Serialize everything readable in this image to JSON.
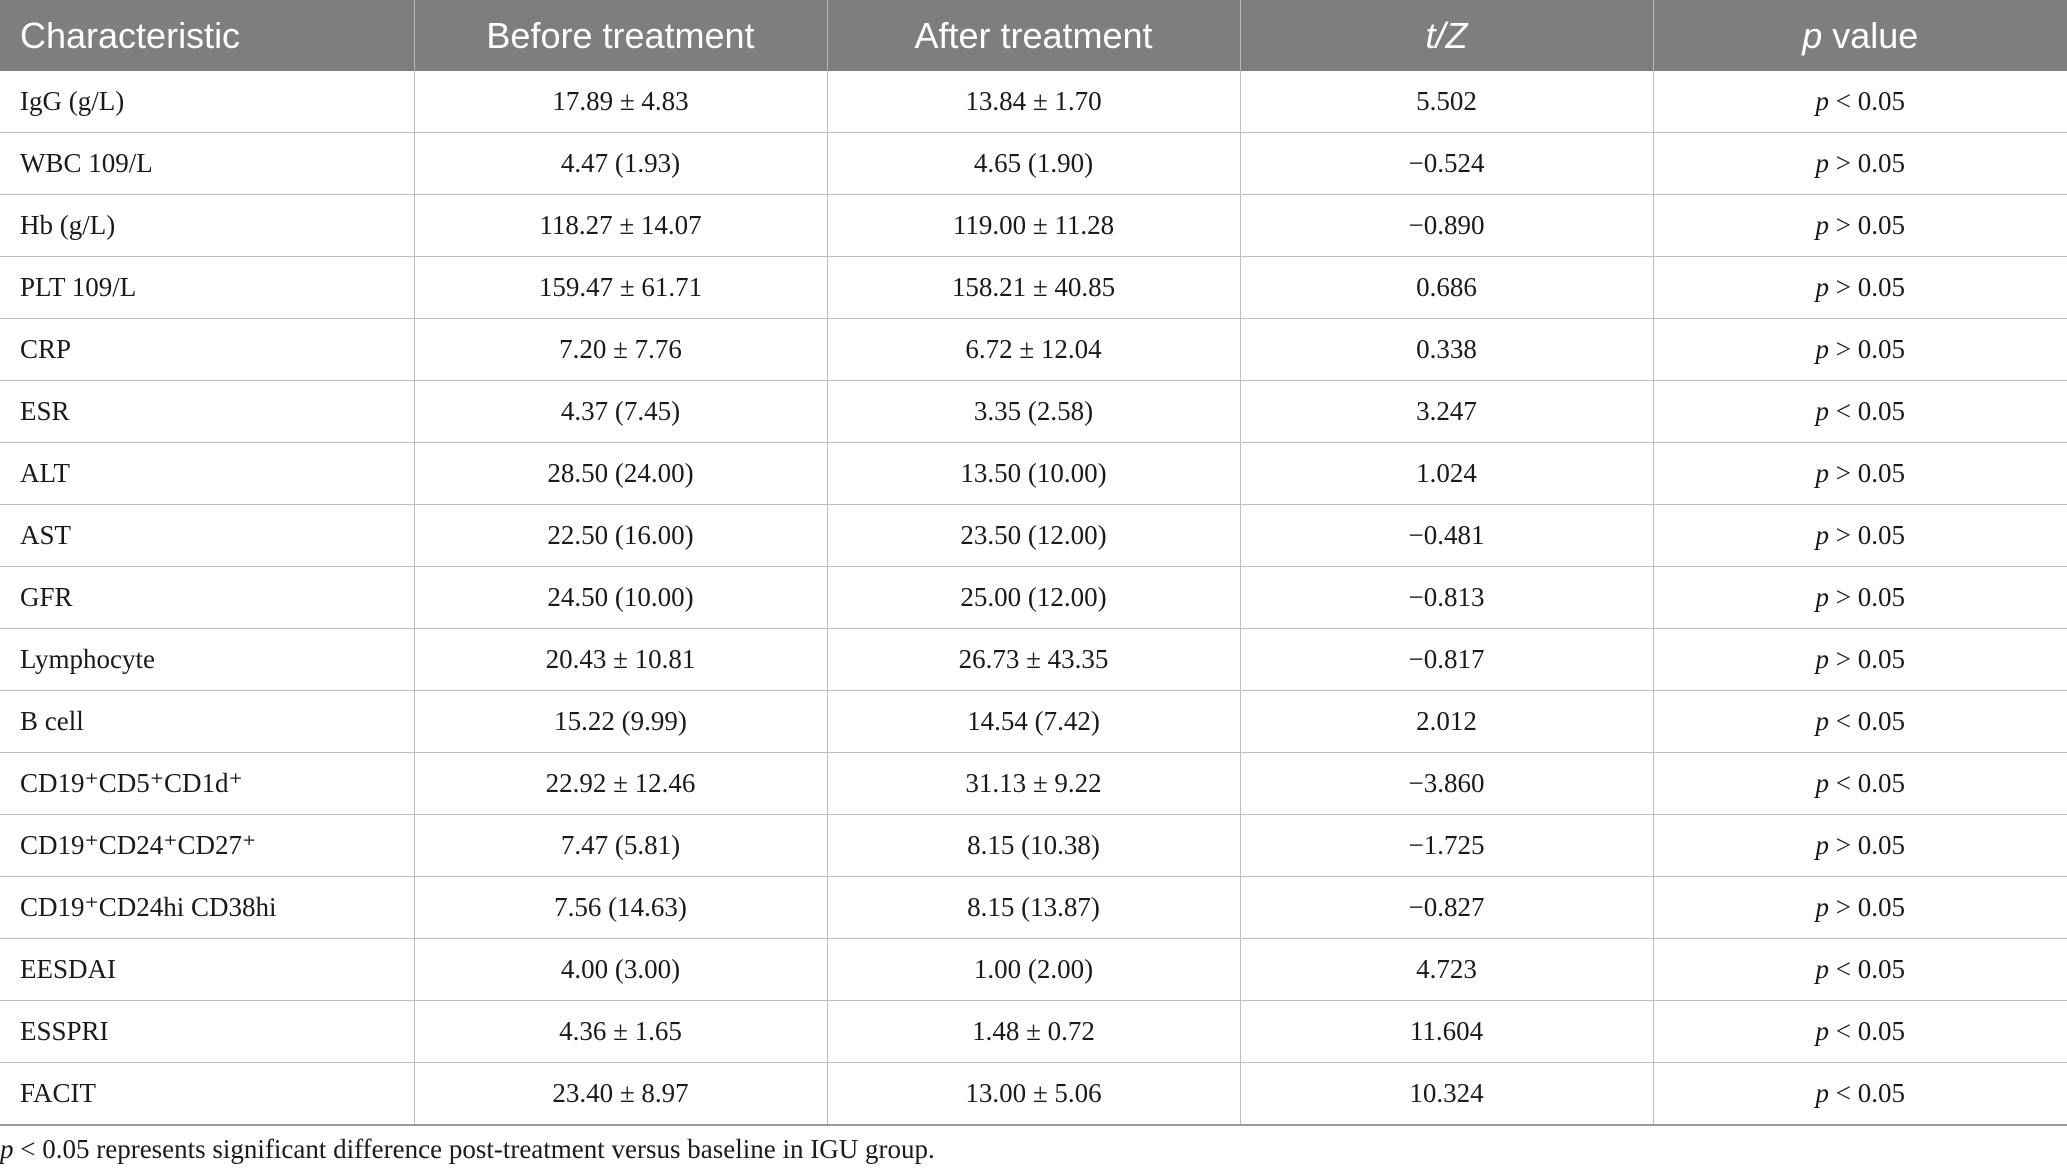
{
  "table": {
    "headers": {
      "characteristic": "Characteristic",
      "before": "Before treatment",
      "after": "After treatment",
      "tz": "t/Z",
      "p_italic": "p",
      "p_rest": " value"
    },
    "rows": [
      {
        "name": "IgG (g/L)",
        "before": "17.89 ± 4.83",
        "after": "13.84 ± 1.70",
        "tz": "5.502",
        "p_sym": "p",
        "p_rest": " < 0.05"
      },
      {
        "name": "WBC 109/L",
        "before": "4.47 (1.93)",
        "after": "4.65 (1.90)",
        "tz": "−0.524",
        "p_sym": "p",
        "p_rest": " > 0.05"
      },
      {
        "name": "Hb (g/L)",
        "before": "118.27 ± 14.07",
        "after": "119.00 ± 11.28",
        "tz": "−0.890",
        "p_sym": "p",
        "p_rest": " > 0.05"
      },
      {
        "name": "PLT 109/L",
        "before": "159.47 ± 61.71",
        "after": "158.21 ± 40.85",
        "tz": "0.686",
        "p_sym": "p",
        "p_rest": " > 0.05"
      },
      {
        "name": "CRP",
        "before": "7.20 ± 7.76",
        "after": "6.72 ± 12.04",
        "tz": "0.338",
        "p_sym": "p",
        "p_rest": " > 0.05"
      },
      {
        "name": "ESR",
        "before": "4.37 (7.45)",
        "after": "3.35 (2.58)",
        "tz": "3.247",
        "p_sym": "p",
        "p_rest": " < 0.05"
      },
      {
        "name": "ALT",
        "before": "28.50 (24.00)",
        "after": "13.50 (10.00)",
        "tz": "1.024",
        "p_sym": "p",
        "p_rest": " > 0.05"
      },
      {
        "name": "AST",
        "before": "22.50 (16.00)",
        "after": "23.50 (12.00)",
        "tz": "−0.481",
        "p_sym": "p",
        "p_rest": " > 0.05"
      },
      {
        "name": "GFR",
        "before": "24.50 (10.00)",
        "after": "25.00 (12.00)",
        "tz": "−0.813",
        "p_sym": "p",
        "p_rest": " > 0.05"
      },
      {
        "name": "Lymphocyte",
        "before": "20.43 ± 10.81",
        "after": "26.73 ± 43.35",
        "tz": "−0.817",
        "p_sym": "p",
        "p_rest": " > 0.05"
      },
      {
        "name": "B cell",
        "before": "15.22 (9.99)",
        "after": "14.54 (7.42)",
        "tz": "2.012",
        "p_sym": "p",
        "p_rest": " < 0.05"
      },
      {
        "name": "CD19⁺CD5⁺CD1d⁺",
        "before": "22.92 ± 12.46",
        "after": "31.13 ± 9.22",
        "tz": "−3.860",
        "p_sym": "p",
        "p_rest": " < 0.05"
      },
      {
        "name": "CD19⁺CD24⁺CD27⁺",
        "before": "7.47 (5.81)",
        "after": "8.15 (10.38)",
        "tz": "−1.725",
        "p_sym": "p",
        "p_rest": " > 0.05"
      },
      {
        "name": "CD19⁺CD24hi CD38hi",
        "before": "7.56 (14.63)",
        "after": "8.15 (13.87)",
        "tz": "−0.827",
        "p_sym": "p",
        "p_rest": " > 0.05"
      },
      {
        "name": "EESDAI",
        "before": "4.00 (3.00)",
        "after": "1.00 (2.00)",
        "tz": "4.723",
        "p_sym": "p",
        "p_rest": " < 0.05"
      },
      {
        "name": "ESSPRI",
        "before": "4.36 ± 1.65",
        "after": "1.48 ± 0.72",
        "tz": "11.604",
        "p_sym": "p",
        "p_rest": " < 0.05"
      },
      {
        "name": "FACIT",
        "before": "23.40 ± 8.97",
        "after": "13.00 ± 5.06",
        "tz": "10.324",
        "p_sym": "p",
        "p_rest": " < 0.05"
      }
    ]
  },
  "footnote": {
    "p_italic": "p",
    "text": " < 0.05 represents significant difference post-treatment versus baseline in IGU group."
  },
  "colors": {
    "header_bg": "#7d7e7d",
    "header_text": "#ffffff",
    "grid_line": "#bdbdbd"
  }
}
